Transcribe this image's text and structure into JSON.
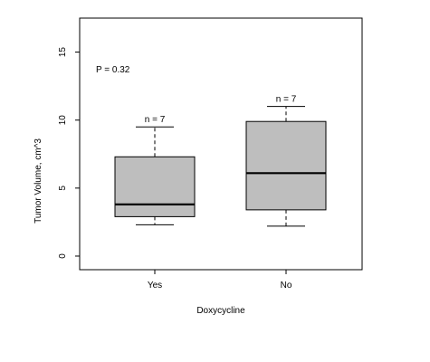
{
  "chart_data": {
    "type": "boxplot",
    "xlabel": "Doxycycline",
    "ylabel": "Tumor Volume, cm^3",
    "ylim": [
      -1,
      17.5
    ],
    "yticks": [
      0,
      5,
      10,
      15
    ],
    "annotation": "P = 0.32",
    "categories": [
      "Yes",
      "No"
    ],
    "boxes": [
      {
        "category": "Yes",
        "min": 2.3,
        "q1": 2.9,
        "median": 3.8,
        "q3": 7.3,
        "max": 9.5,
        "n_label": "n = 7"
      },
      {
        "category": "No",
        "min": 2.2,
        "q1": 3.4,
        "median": 6.1,
        "q3": 9.9,
        "max": 11.0,
        "n_label": "n = 7"
      }
    ],
    "box_fill": "#bebebe"
  }
}
